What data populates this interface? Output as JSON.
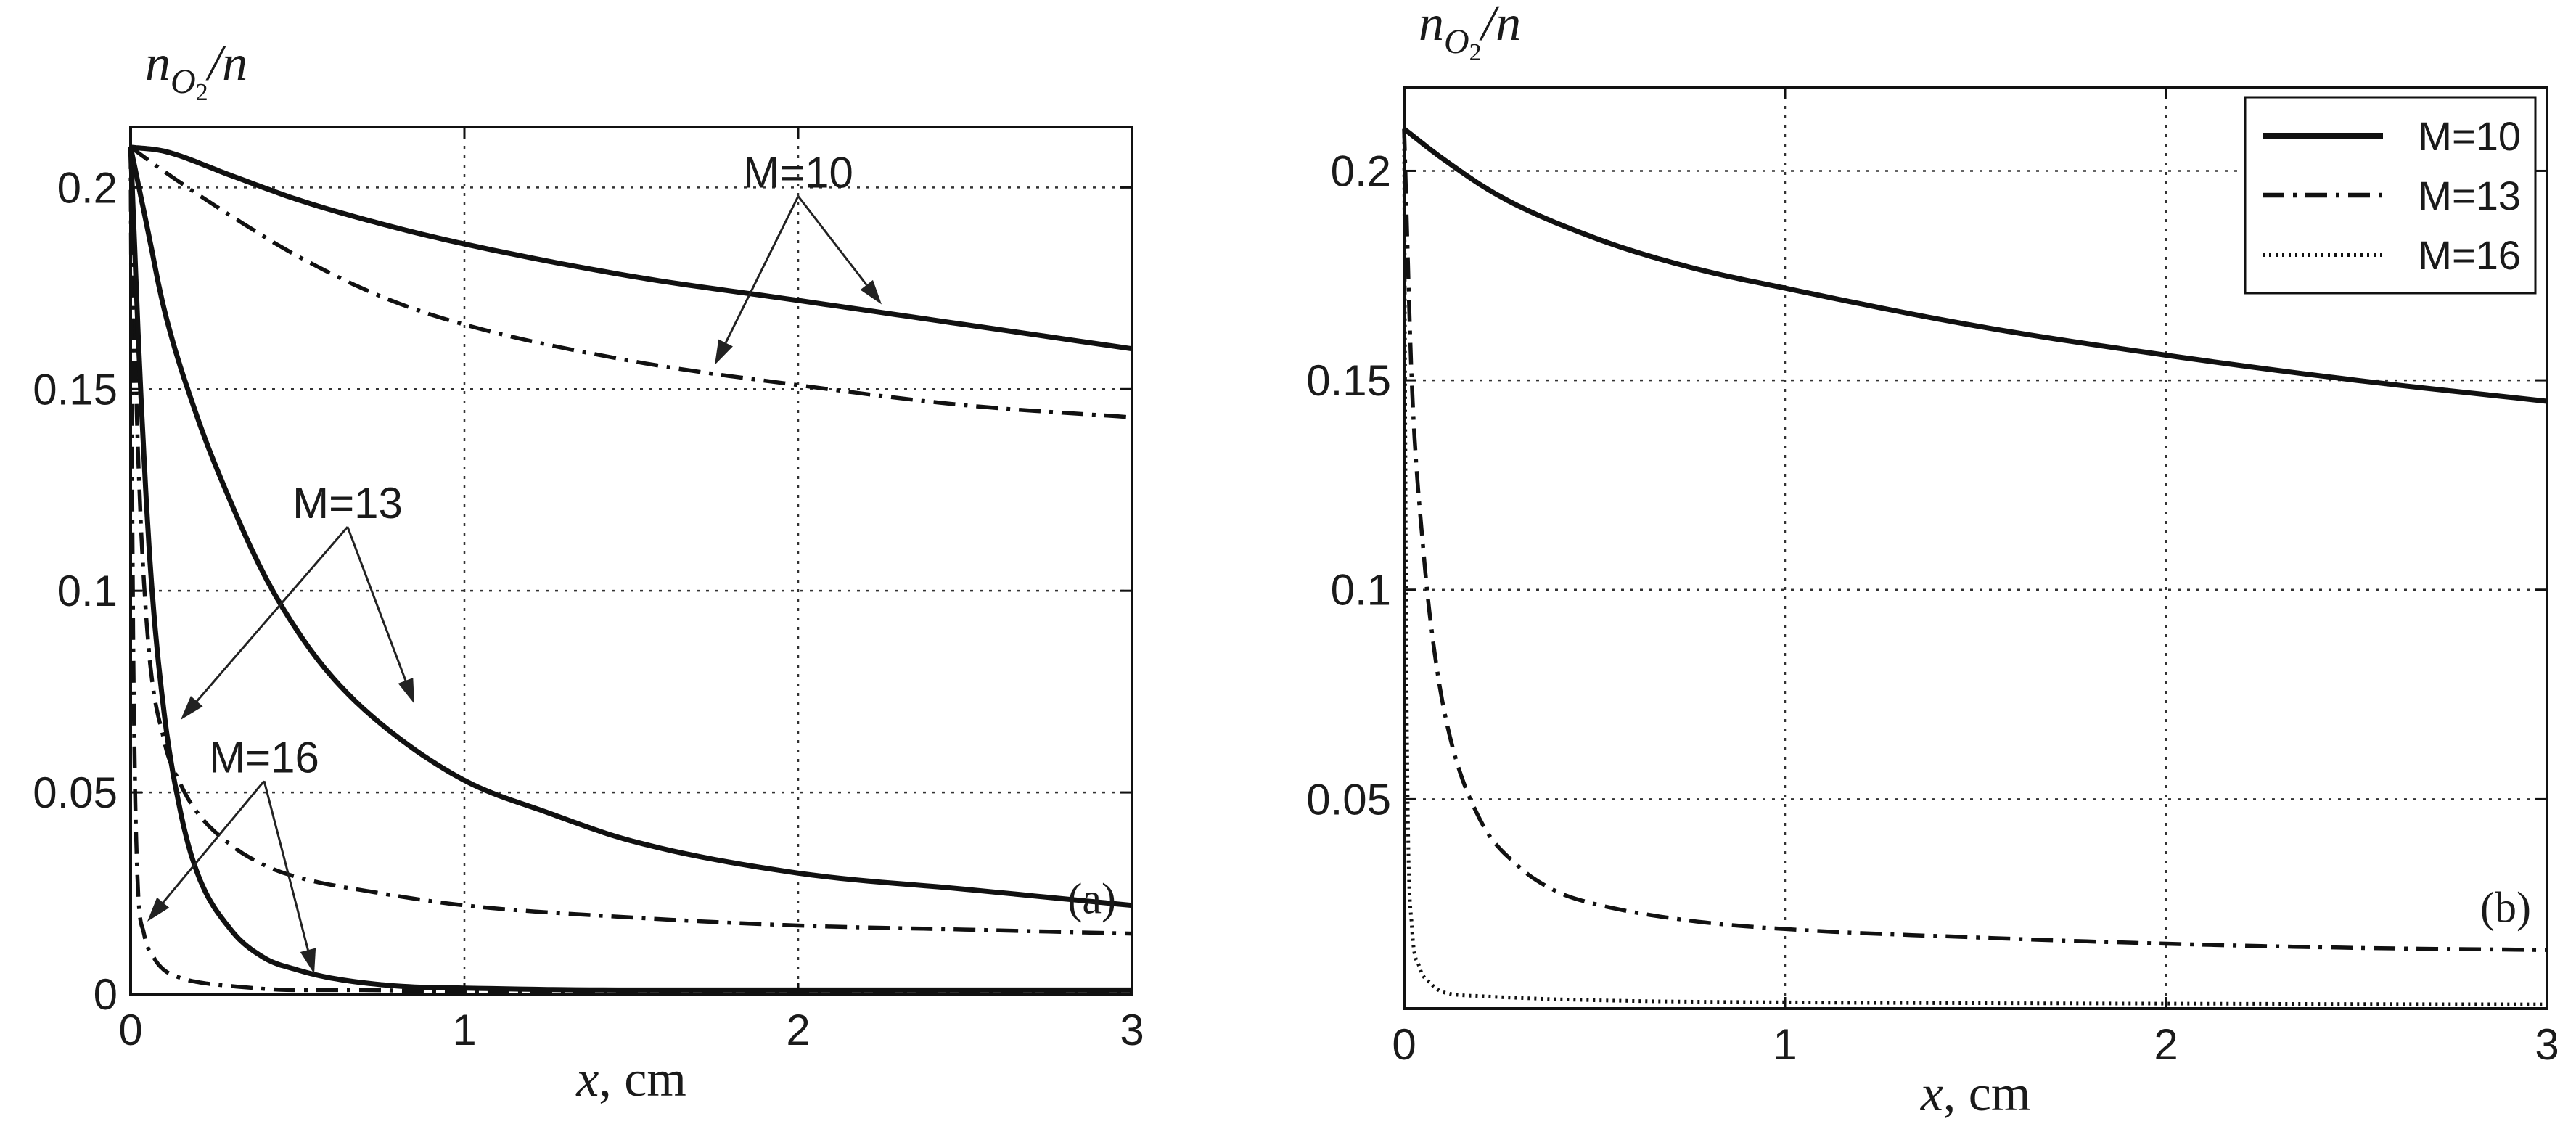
{
  "chart_data": [
    {
      "type": "line",
      "panel_label": "(a)",
      "xlabel_var": "x",
      "xlabel_unit": ", cm",
      "ylabel_main": "n",
      "ylabel_sub": "O",
      "ylabel_subsub": "2",
      "ylabel_tail": "/n",
      "xlim": [
        0,
        3
      ],
      "ylim": [
        0,
        0.215
      ],
      "xticks": [
        0,
        1,
        2,
        3
      ],
      "xtick_labels": [
        "0",
        "1",
        "2",
        "3"
      ],
      "yticks": [
        0,
        0.05,
        0.1,
        0.15,
        0.2
      ],
      "ytick_labels": [
        "0",
        "0.05",
        "0.1",
        "0.15",
        "0.2"
      ],
      "grid": true,
      "series": [
        {
          "name": "M=10 solid",
          "style": "solid",
          "x": [
            0,
            0.1,
            0.3,
            0.5,
            0.75,
            1,
            1.5,
            2,
            2.5,
            3
          ],
          "values": [
            0.21,
            0.209,
            0.203,
            0.197,
            0.191,
            0.186,
            0.178,
            0.172,
            0.166,
            0.16
          ]
        },
        {
          "name": "M=10 dash-dot",
          "style": "dashdot",
          "x": [
            0,
            0.1,
            0.3,
            0.5,
            0.75,
            1,
            1.5,
            2,
            2.5,
            3
          ],
          "values": [
            0.21,
            0.204,
            0.193,
            0.183,
            0.173,
            0.166,
            0.157,
            0.151,
            0.146,
            0.143
          ]
        },
        {
          "name": "M=13 solid",
          "style": "solid",
          "x": [
            0,
            0.05,
            0.1,
            0.2,
            0.3,
            0.4,
            0.5,
            0.6,
            0.75,
            1,
            1.25,
            1.5,
            2,
            2.5,
            3
          ],
          "values": [
            0.21,
            0.19,
            0.17,
            0.143,
            0.122,
            0.104,
            0.09,
            0.079,
            0.067,
            0.053,
            0.045,
            0.038,
            0.03,
            0.026,
            0.022
          ]
        },
        {
          "name": "M=13 dash-dot",
          "style": "dashdot",
          "x": [
            0,
            0.02,
            0.05,
            0.1,
            0.15,
            0.2,
            0.3,
            0.4,
            0.5,
            0.75,
            1,
            1.5,
            2,
            2.5,
            3
          ],
          "values": [
            0.21,
            0.14,
            0.09,
            0.063,
            0.052,
            0.045,
            0.037,
            0.032,
            0.029,
            0.025,
            0.022,
            0.019,
            0.017,
            0.016,
            0.015
          ]
        },
        {
          "name": "M=16 solid",
          "style": "solid",
          "x": [
            0,
            0.03,
            0.06,
            0.1,
            0.15,
            0.2,
            0.3,
            0.4,
            0.5,
            0.6,
            0.8,
            1,
            1.5,
            2,
            3
          ],
          "values": [
            0.21,
            0.15,
            0.105,
            0.07,
            0.045,
            0.03,
            0.016,
            0.009,
            0.006,
            0.004,
            0.002,
            0.0015,
            0.001,
            0.001,
            0.001
          ]
        },
        {
          "name": "M=16 dash-dot",
          "style": "dashdot",
          "x": [
            0,
            0.005,
            0.01,
            0.02,
            0.04,
            0.07,
            0.1,
            0.15,
            0.2,
            0.3,
            0.5,
            0.7,
            1,
            2,
            3
          ],
          "values": [
            0.21,
            0.12,
            0.07,
            0.03,
            0.015,
            0.009,
            0.006,
            0.004,
            0.003,
            0.002,
            0.001,
            0.001,
            0.0005,
            0.0005,
            0.0005
          ]
        }
      ],
      "annotations": [
        {
          "text": "M=10",
          "anchor": [
            2.0,
            0.2
          ],
          "targets": [
            [
              2.25,
              0.171
            ],
            [
              1.75,
              0.156
            ]
          ]
        },
        {
          "text": "M=13",
          "anchor": [
            0.65,
            0.118
          ],
          "targets": [
            [
              0.85,
              0.072
            ],
            [
              0.15,
              0.068
            ]
          ]
        },
        {
          "text": "M=16",
          "anchor": [
            0.4,
            0.055
          ],
          "targets": [
            [
              0.55,
              0.005
            ],
            [
              0.05,
              0.018
            ]
          ]
        }
      ]
    },
    {
      "type": "line",
      "panel_label": "(b)",
      "xlabel_var": "x",
      "xlabel_unit": ", cm",
      "ylabel_main": "n",
      "ylabel_sub": "O",
      "ylabel_subsub": "2",
      "ylabel_tail": "/n",
      "xlim": [
        0,
        3
      ],
      "ylim": [
        0,
        0.22
      ],
      "xticks": [
        0,
        1,
        2,
        3
      ],
      "xtick_labels": [
        "0",
        "1",
        "2",
        "3"
      ],
      "yticks": [
        0.05,
        0.1,
        0.15,
        0.2
      ],
      "ytick_labels": [
        "0.05",
        "0.1",
        "0.15",
        "0.2"
      ],
      "grid": true,
      "legend": {
        "position": "top-right",
        "entries": [
          "M=10",
          "M=13",
          "M=16"
        ]
      },
      "series": [
        {
          "name": "M=10",
          "style": "solid",
          "x": [
            0,
            0.1,
            0.25,
            0.5,
            0.75,
            1,
            1.5,
            2,
            2.5,
            3
          ],
          "values": [
            0.21,
            0.203,
            0.194,
            0.184,
            0.177,
            0.172,
            0.163,
            0.156,
            0.15,
            0.145
          ]
        },
        {
          "name": "M=13",
          "style": "dashdot",
          "x": [
            0,
            0.02,
            0.05,
            0.08,
            0.12,
            0.2,
            0.3,
            0.4,
            0.5,
            0.75,
            1,
            1.5,
            2,
            2.5,
            3
          ],
          "values": [
            0.21,
            0.15,
            0.11,
            0.085,
            0.065,
            0.045,
            0.034,
            0.028,
            0.025,
            0.021,
            0.019,
            0.017,
            0.0155,
            0.0145,
            0.014
          ]
        },
        {
          "name": "M=16",
          "style": "dotted",
          "x": [
            0,
            0.005,
            0.01,
            0.02,
            0.04,
            0.07,
            0.1,
            0.2,
            0.5,
            1,
            2,
            3
          ],
          "values": [
            0.21,
            0.1,
            0.045,
            0.02,
            0.01,
            0.006,
            0.004,
            0.003,
            0.002,
            0.0015,
            0.0012,
            0.001
          ]
        }
      ]
    }
  ]
}
